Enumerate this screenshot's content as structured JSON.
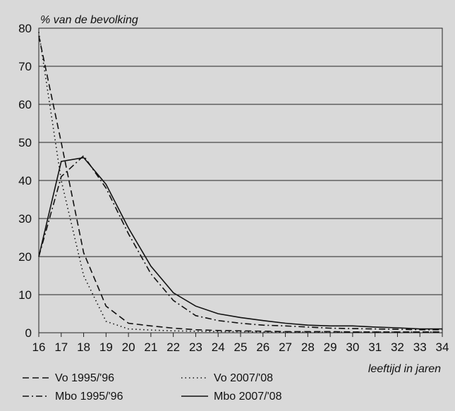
{
  "chart_data": {
    "type": "line",
    "ylabel": "% van de bevolking",
    "xlabel": "leeftijd in jaren",
    "x": [
      16,
      17,
      18,
      19,
      20,
      21,
      22,
      23,
      24,
      25,
      26,
      27,
      28,
      29,
      30,
      31,
      32,
      33,
      34
    ],
    "xlim": [
      16,
      34
    ],
    "ylim": [
      0,
      80
    ],
    "yticks": [
      0,
      10,
      20,
      30,
      40,
      50,
      60,
      70,
      80
    ],
    "grid": true,
    "legend_position": "bottom",
    "series": [
      {
        "name": "Vo 1995/'96",
        "dash": "dashed",
        "values": [
          78,
          50,
          21,
          7,
          2.5,
          1.8,
          1.2,
          0.8,
          0.6,
          0.5,
          0.4,
          0.3,
          0.3,
          0.3,
          0.2,
          0.2,
          0.2,
          0.2,
          0.2
        ]
      },
      {
        "name": "Vo 2007/'08",
        "dash": "dotted",
        "values": [
          79,
          40,
          15,
          3,
          1,
          0.7,
          0.5,
          0.4,
          0.3,
          0.3,
          0.2,
          0.2,
          0.2,
          0.2,
          0.2,
          0.2,
          0.2,
          0.2,
          0.2
        ]
      },
      {
        "name": "Mbo 1995/'96",
        "dash": "dashdot",
        "values": [
          20,
          41,
          46.5,
          38,
          26,
          15.5,
          8.5,
          4.5,
          3.2,
          2.5,
          2,
          1.8,
          1.5,
          1.2,
          1.1,
          1,
          0.9,
          0.8,
          0.8
        ]
      },
      {
        "name": "Mbo 2007/'08",
        "dash": "solid",
        "values": [
          20,
          45,
          46,
          39,
          27.5,
          17.5,
          10.5,
          7,
          5,
          4,
          3.2,
          2.5,
          2,
          1.8,
          1.8,
          1.5,
          1.3,
          1,
          1
        ]
      }
    ]
  }
}
